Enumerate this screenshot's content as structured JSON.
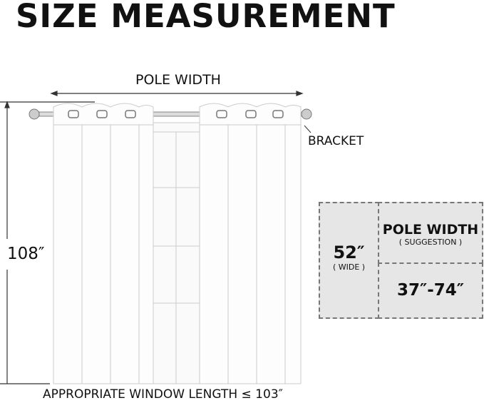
{
  "title": "SIZE MEASUREMENT",
  "pole_width_label": "POLE WIDTH",
  "height_label": "108″",
  "bracket_label": "BRACKET",
  "bottom_note": "APPROPRIATE WINDOW LENGTH ≤ 103″",
  "spec_box": {
    "width_value": "52″",
    "width_caption": "( WIDE )",
    "pole_title": "POLE WIDTH",
    "pole_caption": "( SUGGESTION )",
    "pole_range": "37″-74″"
  }
}
